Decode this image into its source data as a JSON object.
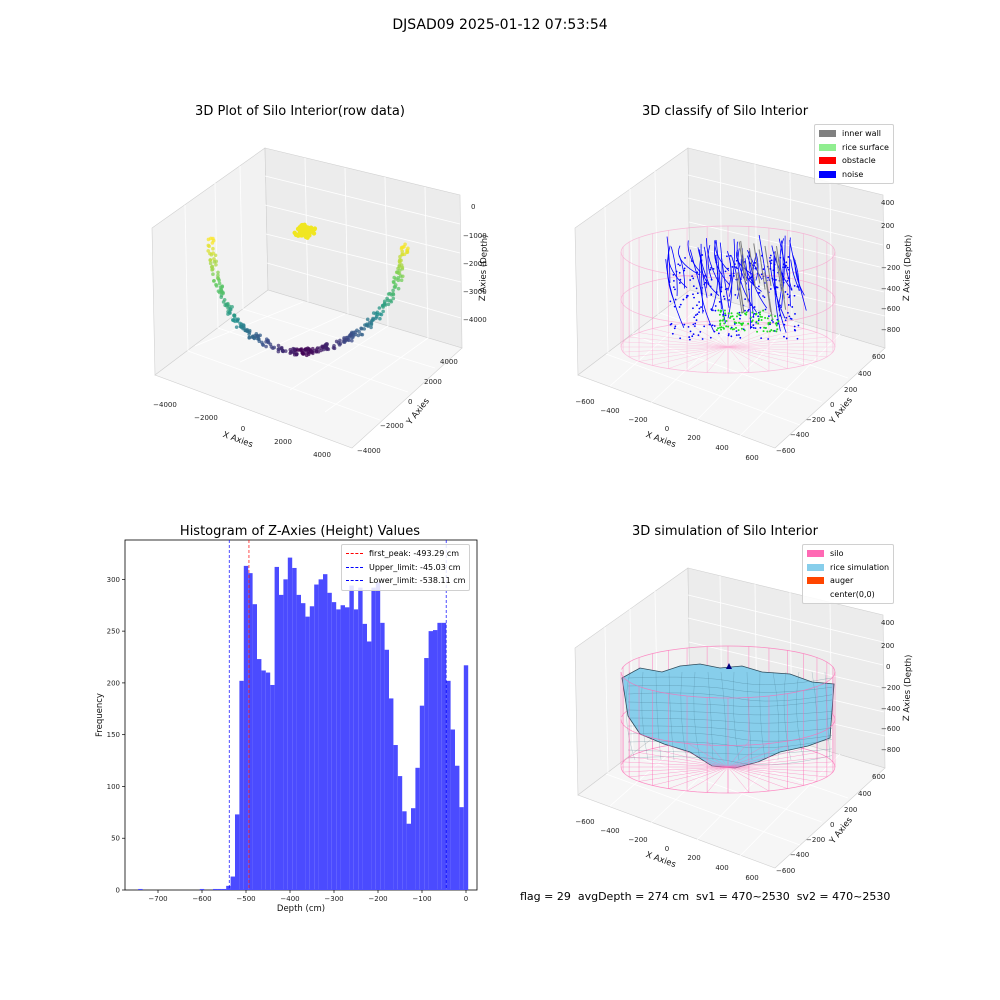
{
  "suptitle": "DJSAD09 2025-01-12 07:53:54",
  "footer": "flag = 29  avgDepth = 274 cm  sv1 = 470~2530  sv2 = 470~2530",
  "colors": {
    "inner_wall": "#808080",
    "rice_surface": "#90ee90",
    "obstacle": "#ff0000",
    "noise": "#0000ff",
    "silo": "#ff69b4",
    "rice_simulation": "#87ceeb",
    "auger": "#ff4500",
    "hist": "#4b4bff"
  },
  "panels": {
    "raw": {
      "title": "3D Plot of Silo Interior(row data)",
      "xlabel": "X Axies",
      "ylabel": "Y Axies",
      "zlabel": "Z Axies (Depth)",
      "xticks": [
        "−4000",
        "−2000",
        "0",
        "2000",
        "4000"
      ],
      "yticks": [
        "4000",
        "2000",
        "0",
        "−2000",
        "−4000"
      ],
      "zticks": [
        "0",
        "−1000",
        "−2000",
        "−3000",
        "−4000"
      ]
    },
    "classify": {
      "title": "3D classify of Silo Interior",
      "xlabel": "X Axies",
      "ylabel": "Y Axies",
      "zlabel": "Z Axies (Depth)",
      "xticks": [
        "−600",
        "−400",
        "−200",
        "0",
        "200",
        "400",
        "600"
      ],
      "yticks": [
        "600",
        "400",
        "200",
        "0",
        "−200",
        "−400",
        "−600"
      ],
      "zticks": [
        "400",
        "200",
        "0",
        "−200",
        "−400",
        "−600",
        "−800"
      ],
      "legend": [
        "inner wall",
        "rice surface",
        "obstacle",
        "noise"
      ]
    },
    "simulation": {
      "title": "3D simulation of Silo Interior",
      "xlabel": "X Axies",
      "ylabel": "Y Axies",
      "zlabel": "Z Axies (Depth)",
      "xticks": [
        "−600",
        "−400",
        "−200",
        "0",
        "200",
        "400",
        "600"
      ],
      "yticks": [
        "600",
        "400",
        "200",
        "0",
        "−200",
        "−400",
        "−600"
      ],
      "zticks": [
        "400",
        "200",
        "0",
        "−200",
        "−400",
        "−600",
        "−800"
      ],
      "legend": [
        "silo",
        "rice simulation",
        "auger",
        "center(0,0)"
      ]
    }
  },
  "chart_data": {
    "type": "bar",
    "title": "Histogram of Z-Axies (Height) Values",
    "xlabel": "Depth (cm)",
    "ylabel": "Frequency",
    "xlim": [
      -775,
      25
    ],
    "ylim": [
      0,
      338
    ],
    "xticks": [
      -700,
      -600,
      -500,
      -400,
      -300,
      -200,
      -100,
      0
    ],
    "yticks": [
      0,
      50,
      100,
      150,
      200,
      250,
      300
    ],
    "bin_width": 10,
    "bin_starts": [
      -745,
      -605,
      -575,
      -565,
      -555,
      -545,
      -535,
      -525,
      -515,
      -505,
      -495,
      -485,
      -475,
      -465,
      -455,
      -445,
      -435,
      -425,
      -415,
      -405,
      -395,
      -385,
      -375,
      -365,
      -355,
      -345,
      -335,
      -325,
      -315,
      -305,
      -295,
      -285,
      -275,
      -265,
      -255,
      -245,
      -235,
      -225,
      -215,
      -205,
      -195,
      -185,
      -175,
      -165,
      -155,
      -145,
      -135,
      -125,
      -115,
      -105,
      -95,
      -85,
      -75,
      -65,
      -55,
      -45,
      -35,
      -25,
      -15,
      -5
    ],
    "values": [
      1,
      1,
      1,
      1,
      1,
      4,
      13,
      73,
      202,
      313,
      306,
      276,
      223,
      212,
      210,
      198,
      312,
      285,
      300,
      321,
      311,
      285,
      277,
      264,
      274,
      295,
      300,
      305,
      287,
      278,
      271,
      275,
      273,
      294,
      271,
      292,
      257,
      240,
      292,
      297,
      258,
      232,
      185,
      140,
      110,
      76,
      64,
      79,
      118,
      178,
      224,
      250,
      251,
      258,
      258,
      202,
      155,
      120,
      80,
      217
    ],
    "reference_lines": [
      {
        "name": "first_peak: -493.29 cm",
        "x": -493.29,
        "color": "#ff0000"
      },
      {
        "name": "Upper_limit: -45.03 cm",
        "x": -45.03,
        "color": "#0000ff"
      },
      {
        "name": "Lower_limit: -538.11 cm",
        "x": -538.11,
        "color": "#0000ff"
      }
    ]
  }
}
